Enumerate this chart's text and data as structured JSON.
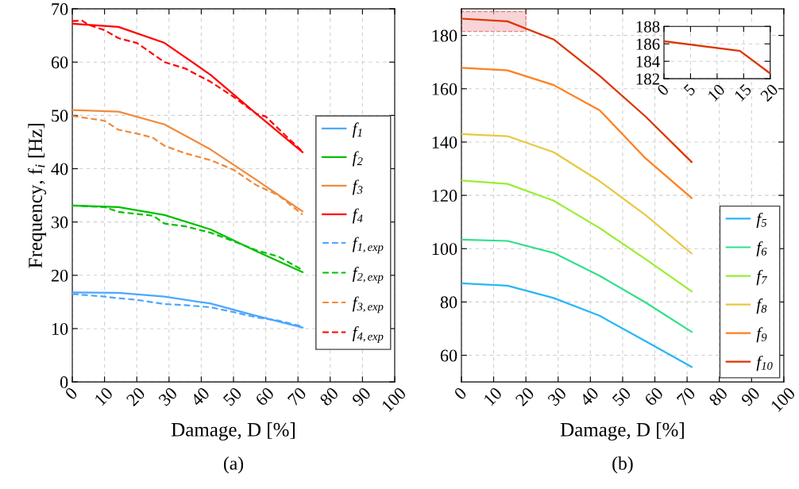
{
  "chart_data": [
    {
      "type": "line",
      "ylabel": "Frequency, f$_{i}$ [Hz]",
      "xlabel": "Damage, D [%]",
      "annotations": [
        "(a)"
      ],
      "xlim": [
        0,
        100
      ],
      "xticks": [
        0,
        10,
        20,
        30,
        40,
        50,
        60,
        70,
        80,
        90,
        100
      ],
      "ylim": [
        0,
        70
      ],
      "yticks": [
        0,
        10,
        20,
        30,
        40,
        50,
        60,
        70
      ],
      "grid": true,
      "legend": "right",
      "marker": "none",
      "series": [
        {
          "name": "f$_{1}$",
          "color": "#4da6ff",
          "line_style": "solid",
          "x": [
            0,
            14.3,
            28.6,
            42.9,
            57.1,
            71.4
          ],
          "values": [
            16.8,
            16.7,
            16.0,
            14.7,
            12.4,
            10.2
          ]
        },
        {
          "name": "f$_{2}$",
          "color": "#00c000",
          "line_style": "solid",
          "x": [
            0,
            14.3,
            28.6,
            42.9,
            57.1,
            71.4
          ],
          "values": [
            33.1,
            32.8,
            31.3,
            28.6,
            24.5,
            20.6
          ]
        },
        {
          "name": "f$_{3}$",
          "color": "#f08a3c",
          "line_style": "solid",
          "x": [
            0,
            14.3,
            28.6,
            42.9,
            57.1,
            71.4
          ],
          "values": [
            51.0,
            50.7,
            48.3,
            43.6,
            37.9,
            32.0
          ]
        },
        {
          "name": "f$_{4}$",
          "color": "#ff0000",
          "line_style": "solid",
          "x": [
            0,
            14.3,
            28.6,
            42.9,
            57.1,
            71.4
          ],
          "values": [
            67.2,
            66.6,
            63.6,
            57.6,
            50.3,
            43.1
          ]
        },
        {
          "name": "f$_{1,exp}$",
          "color": "#4da6ff",
          "line_style": "dashed",
          "x": [
            0,
            10,
            14.3,
            20,
            28.6,
            35,
            42.9,
            50,
            57.1,
            64,
            71.4
          ],
          "values": [
            16.5,
            16.0,
            15.7,
            15.4,
            14.6,
            14.4,
            14.0,
            13.1,
            12.1,
            11.5,
            10.4
          ]
        },
        {
          "name": "f$_{2,exp}$",
          "color": "#00c000",
          "line_style": "dashed",
          "x": [
            0,
            10,
            14.3,
            20,
            25,
            28.6,
            35,
            42.9,
            50,
            57.1,
            64,
            71.4
          ],
          "values": [
            33.1,
            32.8,
            31.9,
            31.5,
            31.2,
            29.7,
            29.2,
            28.0,
            26.4,
            24.7,
            23.5,
            21.0
          ]
        },
        {
          "name": "f$_{3,exp}$",
          "color": "#f08a3c",
          "line_style": "dashed",
          "x": [
            0,
            10,
            14.3,
            20,
            25,
            28.6,
            35,
            42.9,
            50,
            57.1,
            64,
            71.4
          ],
          "values": [
            49.9,
            49.0,
            47.3,
            46.6,
            45.8,
            44.3,
            42.9,
            41.6,
            39.8,
            36.9,
            35.0,
            31.4
          ]
        },
        {
          "name": "f$_{4,exp}$",
          "color": "#ff0000",
          "line_style": "dashed",
          "x": [
            0,
            3,
            5,
            10,
            14.3,
            20,
            28.6,
            35,
            42.9,
            50,
            57.1,
            60,
            66,
            71.4
          ],
          "values": [
            67.7,
            67.8,
            67.0,
            66.0,
            64.5,
            63.6,
            60.0,
            58.8,
            56.3,
            53.5,
            50.3,
            49.8,
            46.3,
            43.2
          ]
        }
      ]
    },
    {
      "type": "line",
      "xlabel": "Damage, D [%]",
      "annotations": [
        "(b)"
      ],
      "xlim": [
        0,
        100
      ],
      "xticks": [
        0,
        10,
        20,
        30,
        40,
        50,
        60,
        70,
        80,
        90,
        100
      ],
      "ylim": [
        50,
        190
      ],
      "yticks": [
        60,
        80,
        100,
        120,
        140,
        160,
        180
      ],
      "grid": true,
      "legend": "bottom right",
      "marker": "none",
      "series": [
        {
          "name": "f$_{5}$",
          "color": "#29b6f6",
          "x": [
            0,
            14.3,
            28.6,
            42.9,
            57.1,
            71.4
          ],
          "values": [
            87.0,
            86.1,
            81.5,
            74.8,
            65.3,
            55.6
          ]
        },
        {
          "name": "f$_{6}$",
          "color": "#33e08a",
          "x": [
            0,
            14.3,
            28.6,
            42.9,
            57.1,
            71.4
          ],
          "values": [
            103.4,
            102.9,
            98.4,
            89.8,
            79.8,
            68.8
          ]
        },
        {
          "name": "f$_{7}$",
          "color": "#99ee33",
          "x": [
            0,
            14.3,
            28.6,
            42.9,
            57.1,
            71.4
          ],
          "values": [
            125.6,
            124.3,
            118.0,
            107.7,
            96.1,
            84.0
          ]
        },
        {
          "name": "f$_{8}$",
          "color": "#e8c840",
          "x": [
            0,
            14.3,
            28.6,
            42.9,
            57.1,
            71.4
          ],
          "values": [
            143.0,
            142.2,
            136.2,
            125.3,
            112.6,
            98.2
          ]
        },
        {
          "name": "f$_{9}$",
          "color": "#ff7f1e",
          "x": [
            0,
            14.3,
            28.6,
            42.9,
            57.1,
            71.4
          ],
          "values": [
            167.9,
            166.9,
            161.4,
            151.9,
            133.9,
            119.0
          ]
        },
        {
          "name": "f$_{10}$",
          "color": "#dd3300",
          "x": [
            0,
            14.3,
            28.6,
            42.9,
            57.1,
            71.4
          ],
          "values": [
            186.3,
            185.3,
            178.5,
            164.8,
            149.6,
            132.5
          ]
        }
      ]
    },
    {
      "type": "line",
      "xlim": [
        0,
        20
      ],
      "xticks": [
        0,
        5,
        10,
        15,
        20
      ],
      "ylim": [
        182,
        188
      ],
      "yticks": [
        182,
        184,
        186,
        188
      ],
      "grid": true,
      "marker": "none",
      "series": [
        {
          "color": "#dd3300",
          "x": [
            0,
            14.3,
            20
          ],
          "values": [
            186.3,
            185.2,
            182.6
          ]
        }
      ]
    }
  ]
}
